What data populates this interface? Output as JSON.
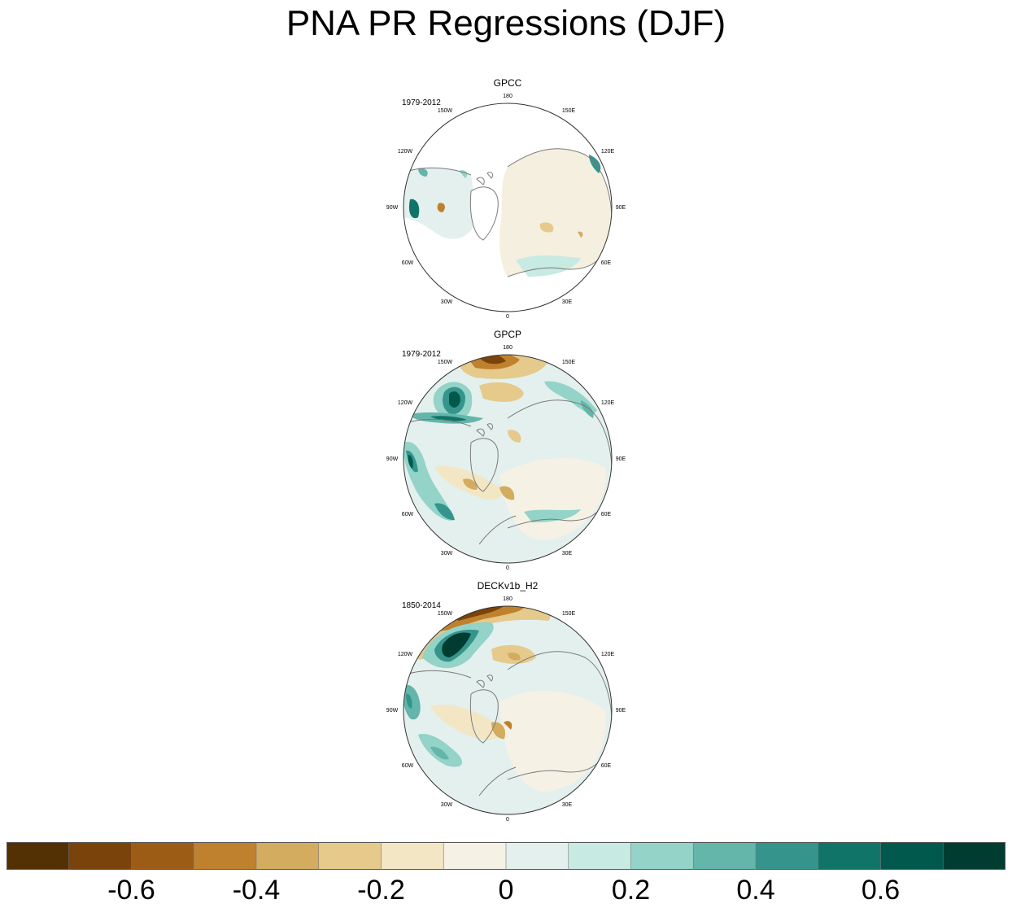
{
  "title": "PNA PR Regressions (DJF)",
  "panels": [
    {
      "name": "GPCC",
      "period": "1979-2012"
    },
    {
      "name": "GPCP",
      "period": "1979-2012"
    },
    {
      "name": "DECKv1b_H2",
      "period": "1850-2014"
    }
  ],
  "longitude_labels": [
    "180",
    "150E",
    "120E",
    "90E",
    "60E",
    "30E",
    "0",
    "30W",
    "60W",
    "90W",
    "120W",
    "150W"
  ],
  "colorbar": {
    "colors": [
      "#543005",
      "#7a430c",
      "#9c5c16",
      "#bf812d",
      "#d3ac60",
      "#e5ca8c",
      "#f3e6c4",
      "#f5f1e5",
      "#e3f0ee",
      "#c7eae3",
      "#93d3c8",
      "#64b5aa",
      "#35958c",
      "#117469",
      "#01594d",
      "#003c30"
    ],
    "tick_labels": [
      "-0.6",
      "-0.4",
      "-0.2",
      "0",
      "0.2",
      "0.4",
      "0.6"
    ],
    "tick_values": [
      -0.6,
      -0.4,
      -0.2,
      0,
      0.2,
      0.4,
      0.6
    ],
    "min": -0.8,
    "max": 0.8
  },
  "colors": {
    "land_outline": "#7a7a7a",
    "frame": "#333333"
  }
}
